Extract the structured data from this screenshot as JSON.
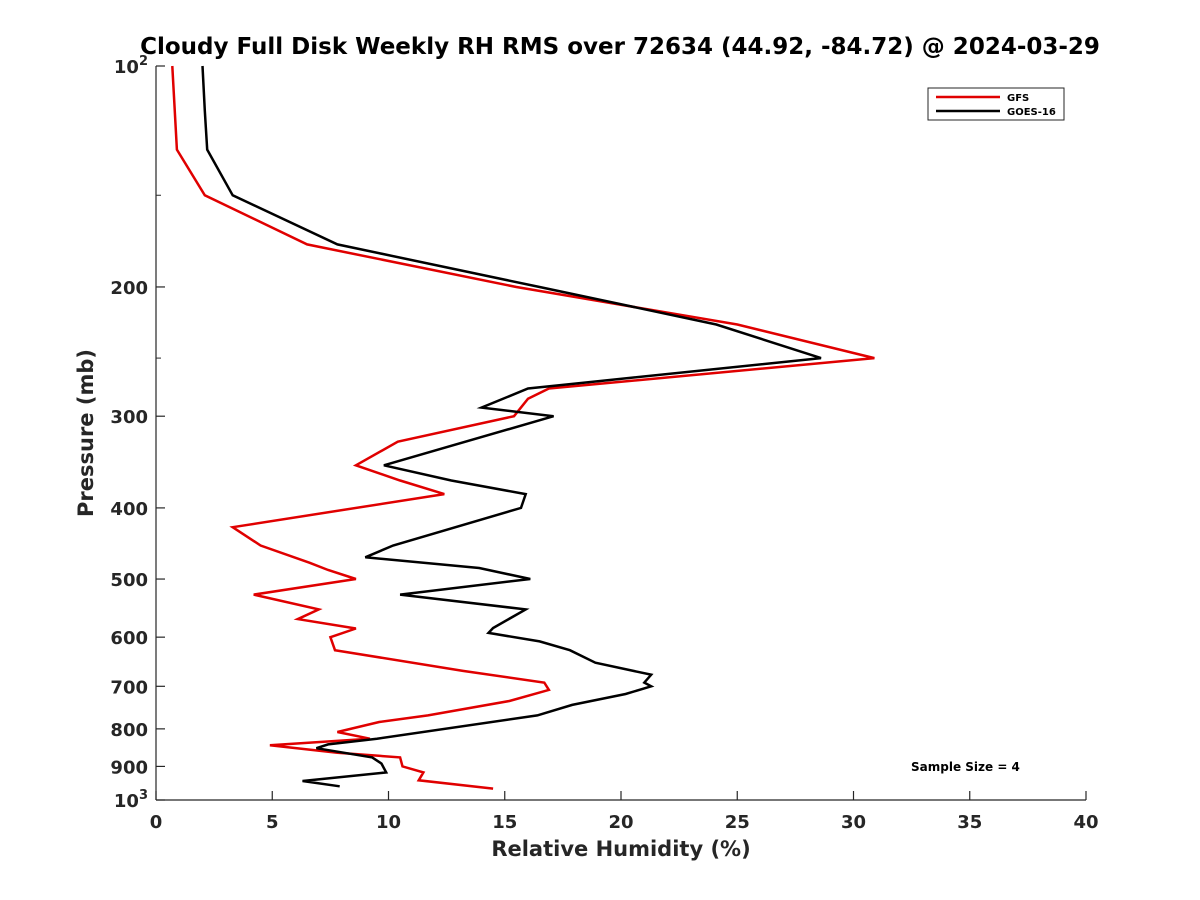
{
  "chart_data": {
    "type": "line",
    "title": "Cloudy Full Disk Weekly RH RMS over 72634 (44.92, -84.72) @ 2024-03-29",
    "xlabel": "Relative Humidity (%)",
    "ylabel": "Pressure (mb)",
    "xlim": [
      0,
      40
    ],
    "ylim": [
      100,
      1000
    ],
    "yscale": "log",
    "y_reversed": true,
    "grid": false,
    "legend_position": "top-right",
    "annotation": "Sample Size = 4",
    "x_ticks": [
      {
        "value": 0,
        "label": "0"
      },
      {
        "value": 5,
        "label": "5"
      },
      {
        "value": 10,
        "label": "10"
      },
      {
        "value": 15,
        "label": "15"
      },
      {
        "value": 20,
        "label": "20"
      },
      {
        "value": 25,
        "label": "25"
      },
      {
        "value": 30,
        "label": "30"
      },
      {
        "value": 35,
        "label": "35"
      },
      {
        "value": 40,
        "label": "40"
      }
    ],
    "y_ticks": [
      {
        "value": 100,
        "label": "10",
        "sup": "2"
      },
      {
        "value": 200,
        "label": "200",
        "sup": ""
      },
      {
        "value": 300,
        "label": "300",
        "sup": ""
      },
      {
        "value": 400,
        "label": "400",
        "sup": ""
      },
      {
        "value": 500,
        "label": "500",
        "sup": ""
      },
      {
        "value": 600,
        "label": "600",
        "sup": ""
      },
      {
        "value": 700,
        "label": "700",
        "sup": ""
      },
      {
        "value": 800,
        "label": "800",
        "sup": ""
      },
      {
        "value": 900,
        "label": "900",
        "sup": ""
      },
      {
        "value": 1000,
        "label": "10",
        "sup": "3"
      }
    ],
    "series": [
      {
        "name": "GFS",
        "color": "#e00000",
        "points": [
          {
            "x": 0.7,
            "p": 100
          },
          {
            "x": 0.9,
            "p": 130
          },
          {
            "x": 2.1,
            "p": 150
          },
          {
            "x": 6.5,
            "p": 175
          },
          {
            "x": 15.5,
            "p": 200
          },
          {
            "x": 25.0,
            "p": 225
          },
          {
            "x": 30.9,
            "p": 250
          },
          {
            "x": 16.9,
            "p": 275
          },
          {
            "x": 16.0,
            "p": 284
          },
          {
            "x": 15.4,
            "p": 300
          },
          {
            "x": 10.4,
            "p": 325
          },
          {
            "x": 8.6,
            "p": 350
          },
          {
            "x": 10.5,
            "p": 367
          },
          {
            "x": 12.4,
            "p": 383
          },
          {
            "x": 3.3,
            "p": 425
          },
          {
            "x": 4.5,
            "p": 450
          },
          {
            "x": 6.6,
            "p": 475
          },
          {
            "x": 7.4,
            "p": 486
          },
          {
            "x": 8.6,
            "p": 500
          },
          {
            "x": 4.2,
            "p": 525
          },
          {
            "x": 7.0,
            "p": 550
          },
          {
            "x": 6.1,
            "p": 567
          },
          {
            "x": 8.6,
            "p": 584
          },
          {
            "x": 7.5,
            "p": 600
          },
          {
            "x": 7.7,
            "p": 625
          },
          {
            "x": 13.2,
            "p": 667
          },
          {
            "x": 16.7,
            "p": 692
          },
          {
            "x": 16.9,
            "p": 708
          },
          {
            "x": 15.2,
            "p": 733
          },
          {
            "x": 11.7,
            "p": 767
          },
          {
            "x": 9.6,
            "p": 783
          },
          {
            "x": 7.8,
            "p": 808
          },
          {
            "x": 9.2,
            "p": 825
          },
          {
            "x": 4.9,
            "p": 842
          },
          {
            "x": 7.8,
            "p": 862
          },
          {
            "x": 10.5,
            "p": 875
          },
          {
            "x": 10.6,
            "p": 900
          },
          {
            "x": 11.5,
            "p": 917
          },
          {
            "x": 11.3,
            "p": 940
          },
          {
            "x": 14.5,
            "p": 965
          }
        ]
      },
      {
        "name": "GOES-16",
        "color": "#000000",
        "points": [
          {
            "x": 2.0,
            "p": 100
          },
          {
            "x": 2.1,
            "p": 115
          },
          {
            "x": 2.2,
            "p": 130
          },
          {
            "x": 3.3,
            "p": 150
          },
          {
            "x": 7.8,
            "p": 175
          },
          {
            "x": 16.5,
            "p": 200
          },
          {
            "x": 24.1,
            "p": 225
          },
          {
            "x": 28.6,
            "p": 250
          },
          {
            "x": 16.0,
            "p": 275
          },
          {
            "x": 14.0,
            "p": 292
          },
          {
            "x": 17.1,
            "p": 300
          },
          {
            "x": 9.8,
            "p": 350
          },
          {
            "x": 12.7,
            "p": 367
          },
          {
            "x": 15.9,
            "p": 383
          },
          {
            "x": 15.7,
            "p": 400
          },
          {
            "x": 10.2,
            "p": 450
          },
          {
            "x": 9.0,
            "p": 467
          },
          {
            "x": 13.9,
            "p": 483
          },
          {
            "x": 16.1,
            "p": 500
          },
          {
            "x": 10.5,
            "p": 525
          },
          {
            "x": 15.9,
            "p": 550
          },
          {
            "x": 14.5,
            "p": 583
          },
          {
            "x": 14.3,
            "p": 592
          },
          {
            "x": 16.5,
            "p": 608
          },
          {
            "x": 17.8,
            "p": 625
          },
          {
            "x": 18.9,
            "p": 650
          },
          {
            "x": 21.3,
            "p": 675
          },
          {
            "x": 21.0,
            "p": 692
          },
          {
            "x": 21.3,
            "p": 700
          },
          {
            "x": 20.2,
            "p": 717
          },
          {
            "x": 17.9,
            "p": 742
          },
          {
            "x": 16.4,
            "p": 767
          },
          {
            "x": 9.5,
            "p": 825
          },
          {
            "x": 7.4,
            "p": 840
          },
          {
            "x": 6.9,
            "p": 850
          },
          {
            "x": 9.3,
            "p": 875
          },
          {
            "x": 9.7,
            "p": 892
          },
          {
            "x": 9.9,
            "p": 917
          },
          {
            "x": 6.3,
            "p": 942
          },
          {
            "x": 7.9,
            "p": 958
          }
        ]
      }
    ]
  }
}
